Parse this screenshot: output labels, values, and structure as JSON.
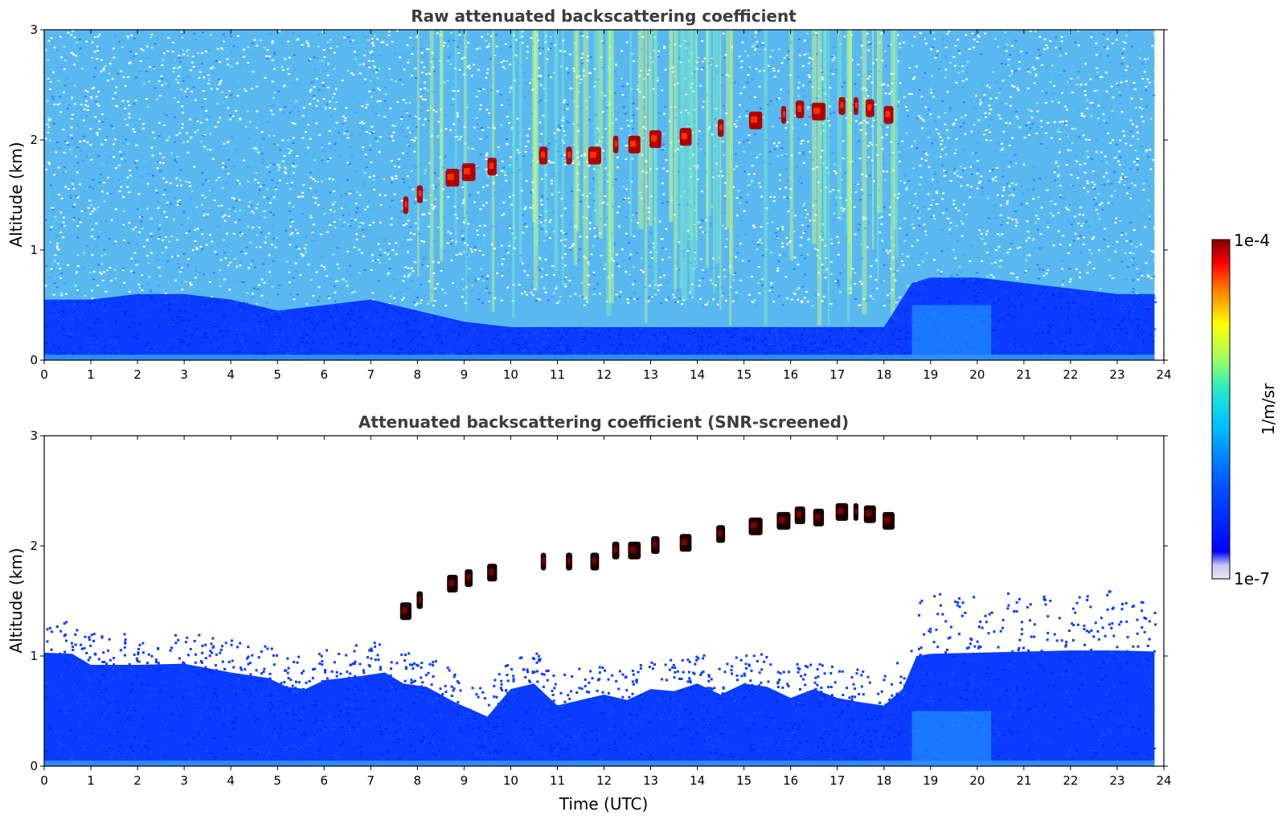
{
  "chart_data": [
    {
      "type": "heatmap",
      "title": "Raw attenuated backscattering coefficient",
      "xlabel": "",
      "ylabel": "Altitude (km)",
      "xlim": [
        0,
        24
      ],
      "ylim": [
        0,
        3
      ],
      "xticks": [
        "0",
        "1",
        "2",
        "3",
        "4",
        "5",
        "6",
        "7",
        "8",
        "9",
        "10",
        "11",
        "12",
        "13",
        "14",
        "15",
        "16",
        "17",
        "18",
        "19",
        "20",
        "21",
        "22",
        "23",
        "24"
      ],
      "yticks": [
        "0",
        "1",
        "2",
        "3"
      ],
      "noise_fill": true,
      "boundary_layer_top_km": [
        [
          0,
          0.55
        ],
        [
          1,
          0.55
        ],
        [
          2,
          0.6
        ],
        [
          3,
          0.6
        ],
        [
          4,
          0.55
        ],
        [
          5,
          0.45
        ],
        [
          6,
          0.5
        ],
        [
          7,
          0.55
        ],
        [
          8,
          0.45
        ],
        [
          9,
          0.35
        ],
        [
          10,
          0.3
        ],
        [
          11,
          0.3
        ],
        [
          12,
          0.3
        ],
        [
          13,
          0.3
        ],
        [
          14,
          0.3
        ],
        [
          15,
          0.3
        ],
        [
          16,
          0.3
        ],
        [
          17,
          0.3
        ],
        [
          18,
          0.3
        ],
        [
          18.6,
          0.7
        ],
        [
          19,
          0.75
        ],
        [
          20,
          0.75
        ],
        [
          21,
          0.7
        ],
        [
          22,
          0.65
        ],
        [
          23,
          0.6
        ],
        [
          23.8,
          0.6
        ]
      ],
      "cloud_layer_km": [
        [
          7.75,
          1.4
        ],
        [
          8.05,
          1.5
        ],
        [
          8.75,
          1.65
        ],
        [
          9.1,
          1.7
        ],
        [
          9.6,
          1.75
        ],
        [
          10.7,
          1.85
        ],
        [
          11.25,
          1.85
        ],
        [
          11.8,
          1.85
        ],
        [
          12.25,
          1.95
        ],
        [
          12.65,
          1.95
        ],
        [
          13.1,
          2.0
        ],
        [
          13.75,
          2.02
        ],
        [
          14.5,
          2.1
        ],
        [
          15.25,
          2.17
        ],
        [
          15.85,
          2.22
        ],
        [
          16.2,
          2.27
        ],
        [
          16.6,
          2.25
        ],
        [
          17.1,
          2.3
        ],
        [
          17.4,
          2.3
        ],
        [
          17.7,
          2.28
        ],
        [
          18.1,
          2.22
        ]
      ]
    },
    {
      "type": "heatmap",
      "title": "Attenuated backscattering coefficient (SNR-screened)",
      "xlabel": "Time (UTC)",
      "ylabel": "Altitude (km)",
      "xlim": [
        0,
        24
      ],
      "ylim": [
        0,
        3
      ],
      "xticks": [
        "0",
        "1",
        "2",
        "3",
        "4",
        "5",
        "6",
        "7",
        "8",
        "9",
        "10",
        "11",
        "12",
        "13",
        "14",
        "15",
        "16",
        "17",
        "18",
        "19",
        "20",
        "21",
        "22",
        "23",
        "24"
      ],
      "yticks": [
        "0",
        "1",
        "2",
        "3"
      ],
      "noise_fill": false,
      "boundary_layer_top_km": [
        [
          0,
          1.03
        ],
        [
          0.6,
          1.02
        ],
        [
          1,
          0.92
        ],
        [
          2,
          0.92
        ],
        [
          3,
          0.93
        ],
        [
          4,
          0.85
        ],
        [
          4.8,
          0.8
        ],
        [
          5.2,
          0.72
        ],
        [
          5.6,
          0.7
        ],
        [
          6,
          0.78
        ],
        [
          6.8,
          0.82
        ],
        [
          7.3,
          0.85
        ],
        [
          7.7,
          0.75
        ],
        [
          8.2,
          0.72
        ],
        [
          8.8,
          0.58
        ],
        [
          9.5,
          0.45
        ],
        [
          10,
          0.7
        ],
        [
          10.5,
          0.75
        ],
        [
          11,
          0.55
        ],
        [
          11.5,
          0.6
        ],
        [
          12,
          0.65
        ],
        [
          12.5,
          0.6
        ],
        [
          13,
          0.7
        ],
        [
          13.5,
          0.68
        ],
        [
          14,
          0.75
        ],
        [
          14.5,
          0.65
        ],
        [
          15,
          0.75
        ],
        [
          15.5,
          0.72
        ],
        [
          16,
          0.62
        ],
        [
          16.5,
          0.7
        ],
        [
          17,
          0.62
        ],
        [
          17.5,
          0.58
        ],
        [
          18,
          0.55
        ],
        [
          18.4,
          0.7
        ],
        [
          18.7,
          1.0
        ],
        [
          19,
          1.02
        ],
        [
          20,
          1.03
        ],
        [
          21,
          1.04
        ],
        [
          22,
          1.05
        ],
        [
          23,
          1.05
        ],
        [
          23.8,
          1.04
        ]
      ],
      "cloud_layer_km": [
        [
          7.75,
          1.4
        ],
        [
          8.05,
          1.5
        ],
        [
          8.75,
          1.65
        ],
        [
          9.1,
          1.7
        ],
        [
          9.6,
          1.75
        ],
        [
          10.7,
          1.85
        ],
        [
          11.25,
          1.85
        ],
        [
          11.8,
          1.85
        ],
        [
          12.25,
          1.95
        ],
        [
          12.65,
          1.95
        ],
        [
          13.1,
          2.0
        ],
        [
          13.75,
          2.02
        ],
        [
          14.5,
          2.1
        ],
        [
          15.25,
          2.17
        ],
        [
          15.85,
          2.22
        ],
        [
          16.2,
          2.27
        ],
        [
          16.6,
          2.25
        ],
        [
          17.1,
          2.3
        ],
        [
          17.4,
          2.3
        ],
        [
          17.7,
          2.28
        ],
        [
          18.1,
          2.22
        ]
      ]
    }
  ],
  "colorbar": {
    "label": "1/m/sr",
    "max_label": "1e-4",
    "min_label": "1e-7",
    "colormap": "jet",
    "colors": [
      "#e8e8f8",
      "#0000ff",
      "#00a0ff",
      "#00e8e8",
      "#a0ff60",
      "#ffff00",
      "#ff8000",
      "#ff0000",
      "#800000"
    ]
  }
}
